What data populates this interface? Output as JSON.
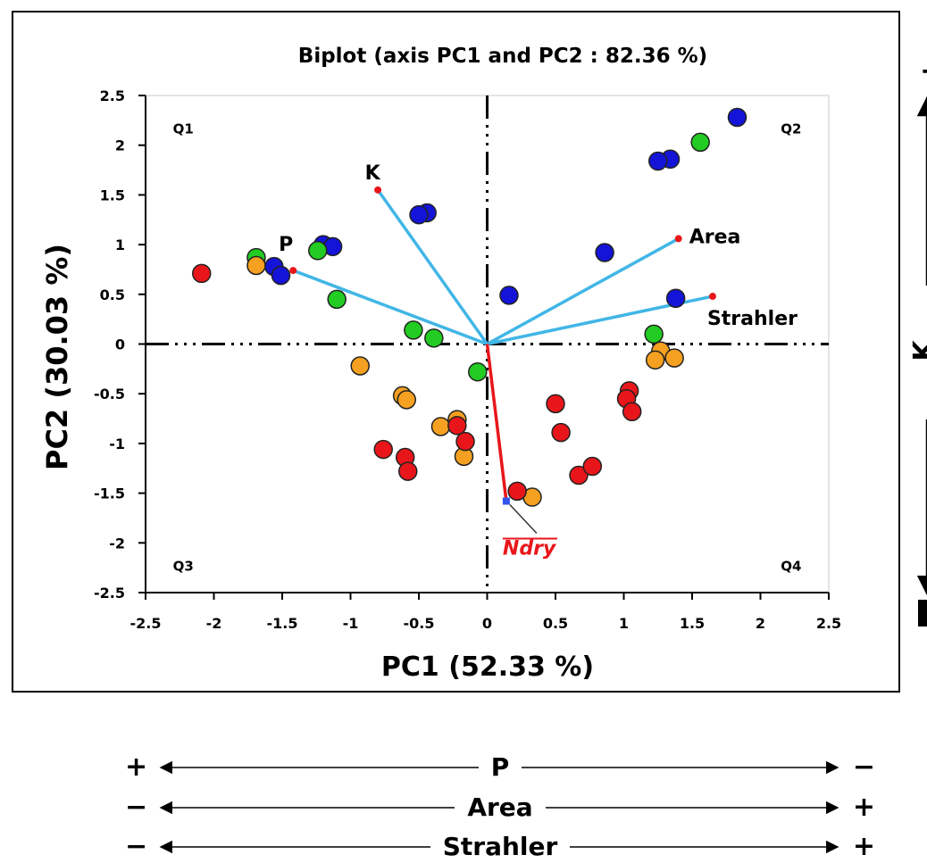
{
  "chart_data": {
    "type": "scatter",
    "title": "Biplot (axis PC1 and PC2 : 82.36 %)",
    "xlabel": "PC1 (52.33 %)",
    "ylabel": "PC2 (30.03 %)",
    "xlim": [
      -2.5,
      2.5
    ],
    "ylim": [
      -2.5,
      2.5
    ],
    "xticks": [
      "-2.5",
      "-2",
      "-1.5",
      "-1",
      "-0.5",
      "0",
      "0.5",
      "1",
      "1.5",
      "2",
      "2.5"
    ],
    "yticks": [
      "2.5",
      "2",
      "1.5",
      "1",
      "0.5",
      "0",
      "-0.5",
      "-1",
      "-1.5",
      "-2",
      "-2.5"
    ],
    "quadrants": [
      "Q1",
      "Q2",
      "Q3",
      "Q4"
    ],
    "vectors": [
      {
        "label": "K",
        "x": -0.8,
        "y": 1.55,
        "color": "#41b6e6"
      },
      {
        "label": "P",
        "x": -1.42,
        "y": 0.74,
        "color": "#41b6e6"
      },
      {
        "label": "Area",
        "x": 1.4,
        "y": 1.06,
        "color": "#41b6e6"
      },
      {
        "label": "Strahler",
        "x": 1.65,
        "y": 0.48,
        "color": "#41b6e6"
      },
      {
        "label": "Ndry",
        "x": 0.14,
        "y": -1.58,
        "color": "#e8161a"
      }
    ],
    "series": [
      {
        "color": "#1414d8",
        "points": [
          [
            1.83,
            2.28
          ],
          [
            1.34,
            1.86
          ],
          [
            1.25,
            1.84
          ],
          [
            -0.44,
            1.32
          ],
          [
            -0.5,
            1.3
          ],
          [
            -1.2,
            1.0
          ],
          [
            -1.13,
            0.98
          ],
          [
            -1.56,
            0.78
          ],
          [
            -1.51,
            0.69
          ],
          [
            0.86,
            0.92
          ],
          [
            0.16,
            0.49
          ],
          [
            1.38,
            0.46
          ]
        ]
      },
      {
        "color": "#22cc22",
        "points": [
          [
            1.56,
            2.03
          ],
          [
            -1.69,
            0.87
          ],
          [
            -1.24,
            0.94
          ],
          [
            -1.1,
            0.45
          ],
          [
            -0.54,
            0.14
          ],
          [
            -0.39,
            0.06
          ],
          [
            1.22,
            0.1
          ],
          [
            -0.07,
            -0.28
          ]
        ]
      },
      {
        "color": "#f5a020",
        "points": [
          [
            -1.69,
            0.79
          ],
          [
            -0.93,
            -0.22
          ],
          [
            1.27,
            -0.07
          ],
          [
            1.23,
            -0.16
          ],
          [
            1.37,
            -0.14
          ],
          [
            -0.62,
            -0.52
          ],
          [
            -0.59,
            -0.56
          ],
          [
            -0.34,
            -0.83
          ],
          [
            -0.22,
            -0.76
          ],
          [
            -0.17,
            -1.13
          ],
          [
            0.33,
            -1.54
          ]
        ]
      },
      {
        "color": "#e8161a",
        "points": [
          [
            -2.09,
            0.71
          ],
          [
            -0.76,
            -1.06
          ],
          [
            -0.6,
            -1.14
          ],
          [
            -0.58,
            -1.28
          ],
          [
            -0.22,
            -0.82
          ],
          [
            -0.16,
            -0.98
          ],
          [
            0.22,
            -1.48
          ],
          [
            0.5,
            -0.6
          ],
          [
            0.54,
            -0.89
          ],
          [
            1.04,
            -0.47
          ],
          [
            1.02,
            -0.55
          ],
          [
            1.06,
            -0.68
          ],
          [
            0.67,
            -1.32
          ],
          [
            0.77,
            -1.23
          ]
        ]
      }
    ]
  },
  "side_axis": {
    "label": "K",
    "top_sign": "+",
    "bottom_sign": "−"
  },
  "bottom_axes": [
    {
      "label": "P",
      "left_sign": "+",
      "right_sign": "−"
    },
    {
      "label": "Area",
      "left_sign": "−",
      "right_sign": "+"
    },
    {
      "label": "Strahler",
      "left_sign": "−",
      "right_sign": "+"
    }
  ]
}
